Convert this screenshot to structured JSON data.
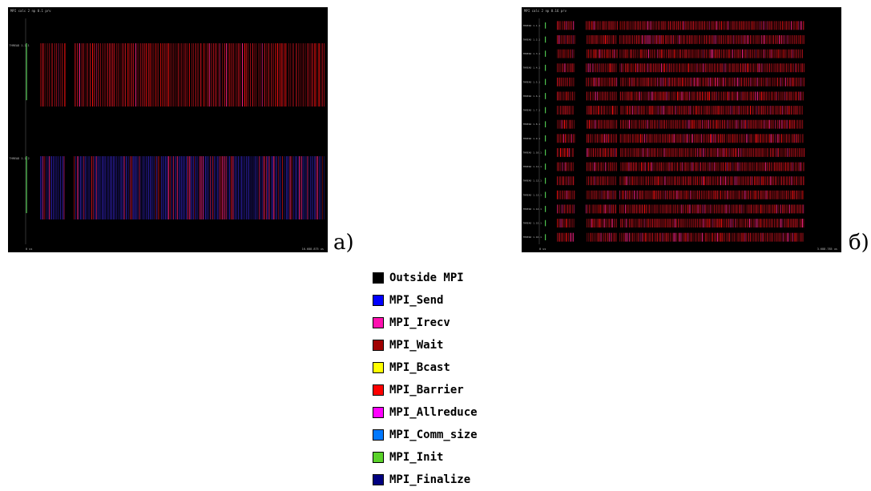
{
  "panels": [
    {
      "id": "a",
      "label": "а)",
      "window_title": "MPI calc 2 np 0.1 prv",
      "time_start": "0 us",
      "time_end": "16.688.875 us",
      "processes": [
        {
          "name": "THREAD 1.1.1",
          "color": "#b0101a",
          "density": 0.55
        },
        {
          "name": "THREAD 1.1.2",
          "color": "#2a1d9e",
          "density": 0.75
        }
      ],
      "init_color": "#4ec24e",
      "accent_color": "#ff1010"
    },
    {
      "id": "b",
      "label": "б)",
      "window_title": "MPI calc 2 np 0.16 prv",
      "time_start": "0 us",
      "time_end": "3.688.785 us",
      "processes": [
        {
          "name": "THREAD 1.1.1",
          "color": "#b0101a",
          "density": 0.8
        },
        {
          "name": "THREAD 1.2.1",
          "color": "#b0101a",
          "density": 0.8
        },
        {
          "name": "THREAD 1.3.1",
          "color": "#b0101a",
          "density": 0.8
        },
        {
          "name": "THREAD 1.4.1",
          "color": "#b0101a",
          "density": 0.8
        },
        {
          "name": "THREAD 1.5.1",
          "color": "#b0101a",
          "density": 0.8
        },
        {
          "name": "THREAD 1.6.1",
          "color": "#b0101a",
          "density": 0.8
        },
        {
          "name": "THREAD 1.7.1",
          "color": "#b0101a",
          "density": 0.8
        },
        {
          "name": "THREAD 1.8.1",
          "color": "#b0101a",
          "density": 0.8
        },
        {
          "name": "THREAD 1.9.1",
          "color": "#b0101a",
          "density": 0.8
        },
        {
          "name": "THREAD 1.10.1",
          "color": "#b0101a",
          "density": 0.8
        },
        {
          "name": "THREAD 1.11.1",
          "color": "#b0101a",
          "density": 0.8
        },
        {
          "name": "THREAD 1.12.1",
          "color": "#b0101a",
          "density": 0.8
        },
        {
          "name": "THREAD 1.13.1",
          "color": "#b0101a",
          "density": 0.8
        },
        {
          "name": "THREAD 1.14.1",
          "color": "#b0101a",
          "density": 0.8
        },
        {
          "name": "THREAD 1.15.1",
          "color": "#b0101a",
          "density": 0.8
        },
        {
          "name": "THREAD 1.16.1",
          "color": "#b0101a",
          "density": 0.8
        }
      ],
      "init_color": "#4ec24e",
      "accent_color": "#ff1010"
    }
  ],
  "legend": [
    {
      "label": "Outside MPI",
      "color": "#000000"
    },
    {
      "label": "MPI_Send",
      "color": "#0000ff"
    },
    {
      "label": "MPI_Irecv",
      "color": "#ff10b0"
    },
    {
      "label": "MPI_Wait",
      "color": "#a00000"
    },
    {
      "label": "MPI_Bcast",
      "color": "#ffff00"
    },
    {
      "label": "MPI_Barrier",
      "color": "#ff0000"
    },
    {
      "label": "MPI_Allreduce",
      "color": "#ff00ff"
    },
    {
      "label": "MPI_Comm_size",
      "color": "#0078ff"
    },
    {
      "label": "MPI_Init",
      "color": "#5ad22a"
    },
    {
      "label": "MPI_Finalize",
      "color": "#000080"
    }
  ]
}
